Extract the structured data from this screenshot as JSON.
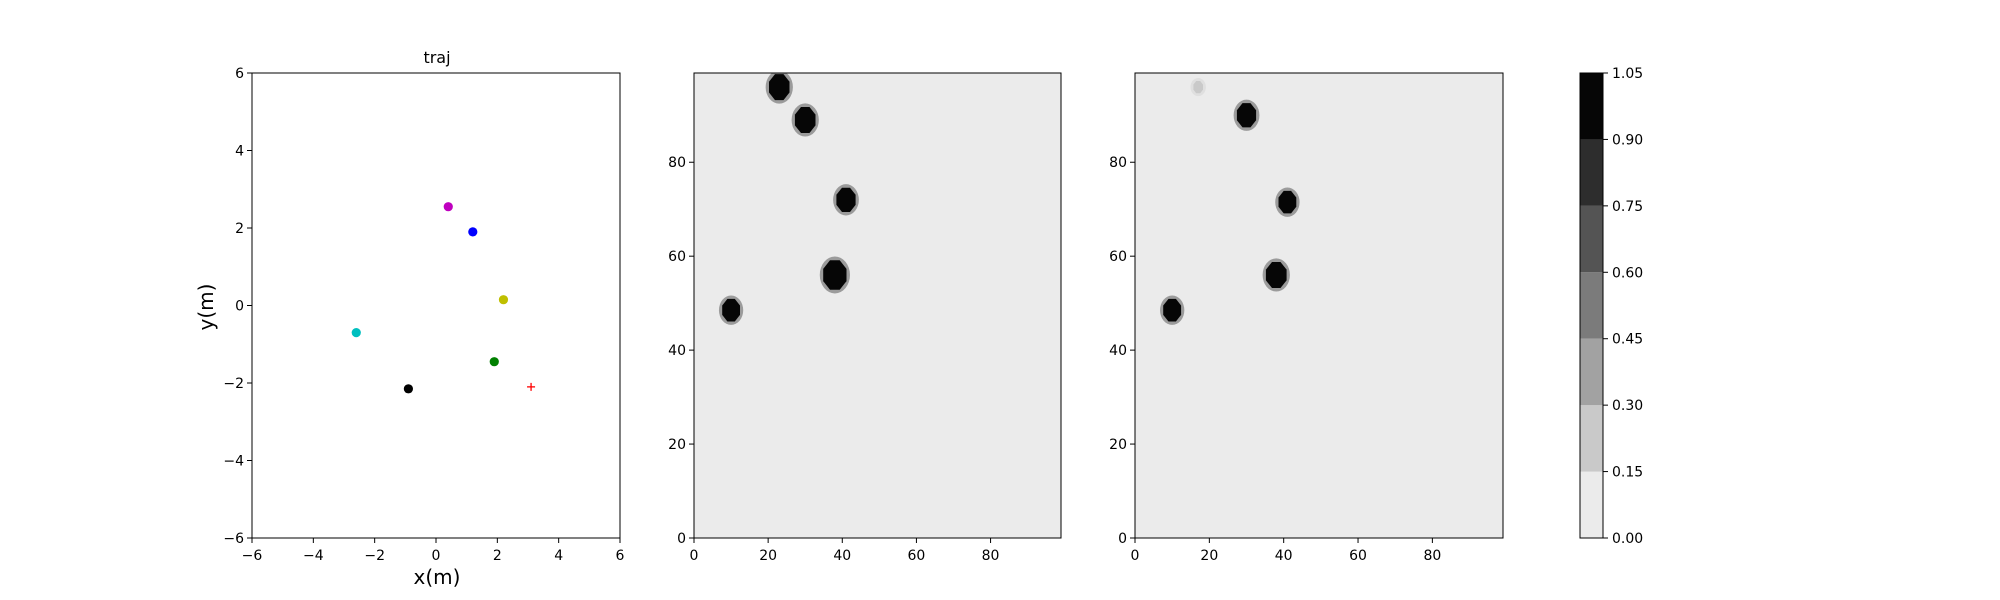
{
  "chart_data": [
    {
      "type": "scatter",
      "title": "traj",
      "xlabel": "x(m)",
      "ylabel": "y(m)",
      "xlim": [
        -6,
        6
      ],
      "ylim": [
        -6,
        6
      ],
      "xticks": [
        -6,
        -4,
        -2,
        0,
        2,
        4,
        6
      ],
      "yticks": [
        -6,
        -4,
        -2,
        0,
        2,
        4,
        6
      ],
      "grid": false,
      "points": [
        {
          "x": 0.4,
          "y": 2.55,
          "color": "#bf00bf",
          "marker": "circle"
        },
        {
          "x": 1.2,
          "y": 1.9,
          "color": "#0000ff",
          "marker": "circle"
        },
        {
          "x": 2.2,
          "y": 0.15,
          "color": "#bfbf00",
          "marker": "circle"
        },
        {
          "x": -2.6,
          "y": -0.7,
          "color": "#00bfbf",
          "marker": "circle"
        },
        {
          "x": 1.9,
          "y": -1.45,
          "color": "#008000",
          "marker": "circle"
        },
        {
          "x": -0.9,
          "y": -2.15,
          "color": "#000000",
          "marker": "circle"
        },
        {
          "x": 3.1,
          "y": -2.1,
          "color": "#ff0000",
          "marker": "plus"
        }
      ]
    },
    {
      "type": "heatmap",
      "title": "",
      "xlim": [
        0,
        99
      ],
      "ylim": [
        0,
        99
      ],
      "xticks": [
        0,
        20,
        40,
        60,
        80
      ],
      "yticks": [
        0,
        20,
        40,
        60,
        80
      ],
      "background_value": 0.07,
      "blobs": [
        {
          "x": 10,
          "y": 48.5,
          "r": 2.6,
          "value": 1.0
        },
        {
          "x": 38,
          "y": 56,
          "r": 3.4,
          "value": 1.0
        },
        {
          "x": 41,
          "y": 72,
          "r": 2.8,
          "value": 1.0
        },
        {
          "x": 30,
          "y": 89,
          "r": 3.0,
          "value": 1.0
        },
        {
          "x": 23,
          "y": 96,
          "r": 3.0,
          "value": 1.0
        }
      ]
    },
    {
      "type": "heatmap",
      "title": "",
      "xlim": [
        0,
        99
      ],
      "ylim": [
        0,
        99
      ],
      "xticks": [
        0,
        20,
        40,
        60,
        80
      ],
      "yticks": [
        0,
        20,
        40,
        60,
        80
      ],
      "background_value": 0.07,
      "blobs": [
        {
          "x": 10,
          "y": 48.5,
          "r": 2.6,
          "value": 1.0
        },
        {
          "x": 38,
          "y": 56,
          "r": 3.0,
          "value": 1.0
        },
        {
          "x": 41,
          "y": 71.5,
          "r": 2.6,
          "value": 1.0
        },
        {
          "x": 30,
          "y": 90,
          "r": 2.8,
          "value": 1.0
        },
        {
          "x": 17,
          "y": 96,
          "r": 1.4,
          "value": 0.25
        }
      ]
    }
  ],
  "colorbar": {
    "ticks": [
      "0.00",
      "0.15",
      "0.30",
      "0.45",
      "0.60",
      "0.75",
      "0.90",
      "1.05"
    ],
    "levels": [
      {
        "from": 0.0,
        "to": 0.15,
        "color": "#ebebeb"
      },
      {
        "from": 0.15,
        "to": 0.3,
        "color": "#c9c9c9"
      },
      {
        "from": 0.3,
        "to": 0.45,
        "color": "#a2a2a2"
      },
      {
        "from": 0.45,
        "to": 0.6,
        "color": "#7b7b7b"
      },
      {
        "from": 0.6,
        "to": 0.75,
        "color": "#545454"
      },
      {
        "from": 0.75,
        "to": 0.9,
        "color": "#2d2d2d"
      },
      {
        "from": 0.9,
        "to": 1.05,
        "color": "#060606"
      }
    ]
  }
}
